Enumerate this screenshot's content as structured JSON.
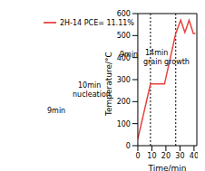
{
  "chart_data": {
    "type": "line",
    "x_label": "Time/min",
    "y_label": "Temperature/°C",
    "x": [
      0,
      9,
      19,
      27,
      30.5,
      33.5,
      36.5,
      39.5,
      41
    ],
    "series": [
      {
        "name": "2H-14 PCE= 11.11%",
        "color": "#e8413c",
        "values": [
          30,
          280,
          280,
          510,
          570,
          515,
          570,
          510,
          510
        ]
      }
    ],
    "xlim": [
      0,
      42
    ],
    "xticks": [
      0,
      10,
      20,
      30,
      40
    ],
    "ylim": [
      0,
      600
    ],
    "yticks": [
      0,
      100,
      200,
      300,
      400,
      500,
      600
    ],
    "vlines": [
      9,
      27
    ],
    "annotations": [
      "9min",
      "10min",
      "nucleation",
      "9min",
      "14min",
      "grain growth"
    ],
    "legend": "upper left",
    "grid": false
  }
}
